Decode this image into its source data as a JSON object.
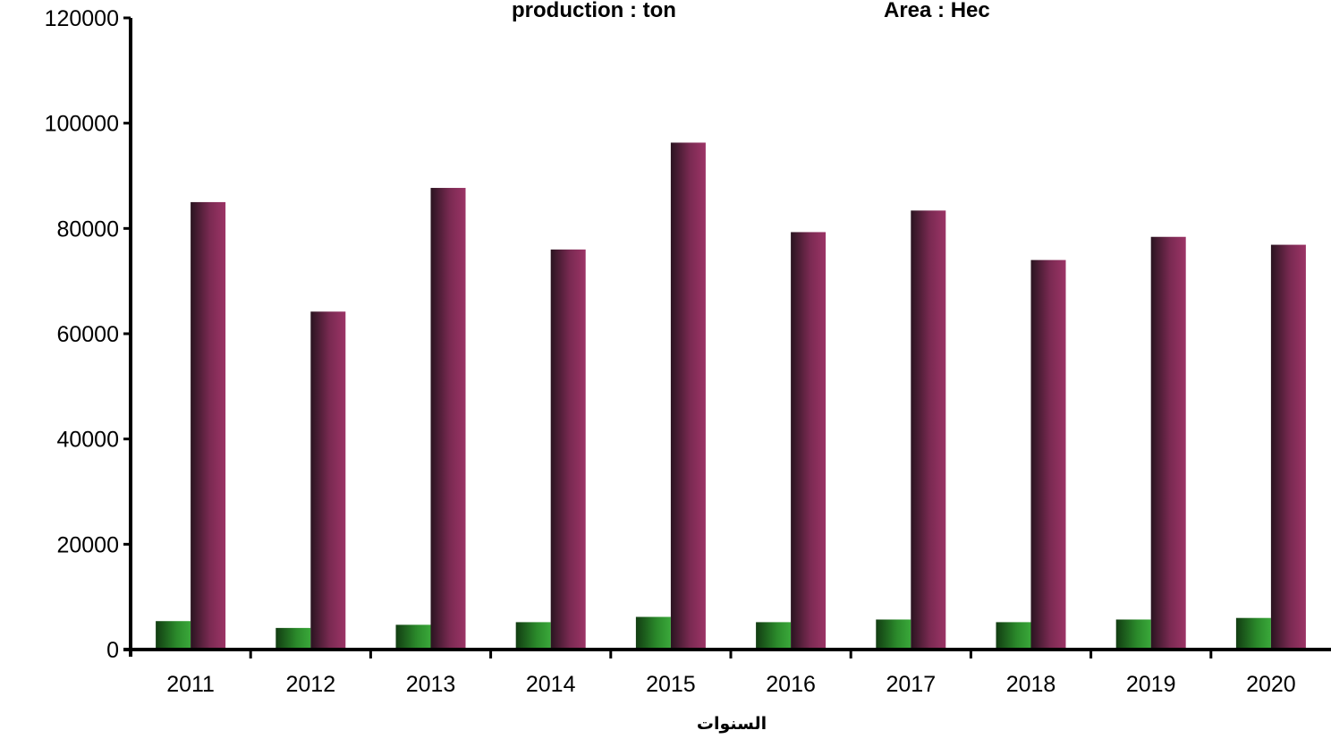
{
  "chart_data": {
    "type": "bar",
    "legend": {
      "production_label": "production : ton",
      "area_label": "Area : Hec"
    },
    "xlabel": "السنوات",
    "ylabel": "",
    "ylim": [
      0,
      120000
    ],
    "yticks": [
      0,
      20000,
      40000,
      60000,
      80000,
      100000,
      120000
    ],
    "categories": [
      "2011",
      "2012",
      "2013",
      "2014",
      "2015",
      "2016",
      "2017",
      "2018",
      "2019",
      "2020"
    ],
    "series": [
      {
        "key": "area",
        "values": [
          5400,
          4100,
          4700,
          5200,
          6200,
          5200,
          5700,
          5200,
          5700,
          6000
        ]
      },
      {
        "key": "production",
        "values": [
          85000,
          64200,
          87700,
          76000,
          96300,
          79300,
          83400,
          74000,
          78400,
          76900
        ]
      }
    ],
    "colors": {
      "area": "#2e8b2e",
      "production": "#993366"
    },
    "grid": false
  }
}
